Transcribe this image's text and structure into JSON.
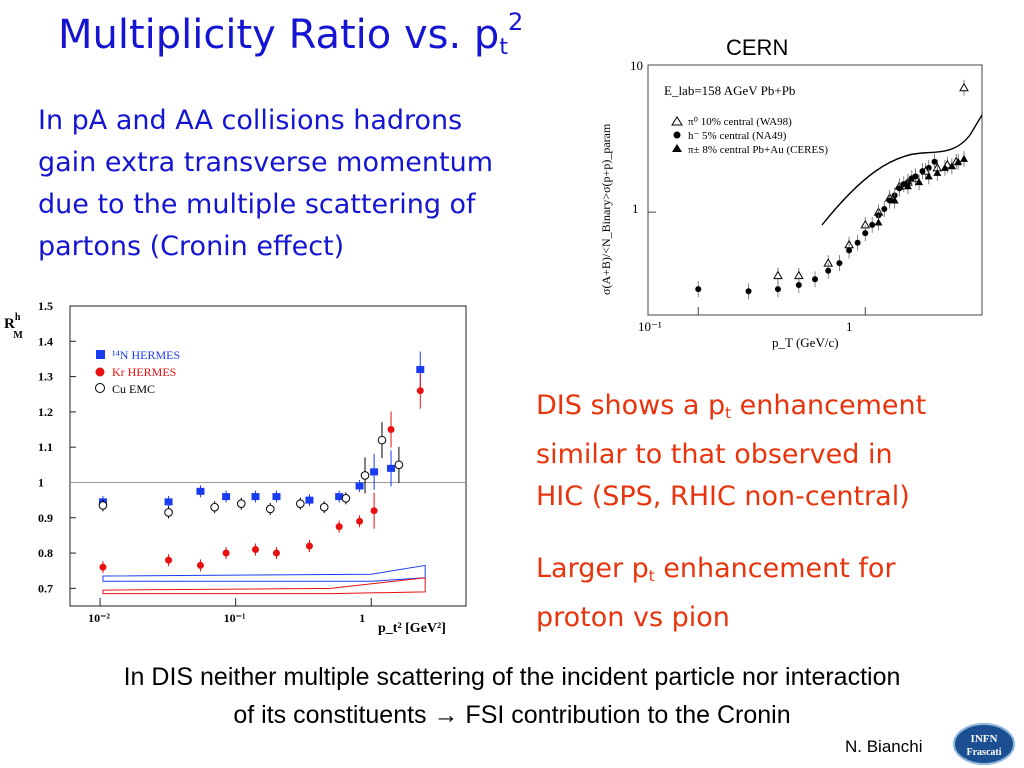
{
  "slide": {
    "title_main": "Multiplicity Ratio vs. p",
    "title_sub": "t",
    "title_sup": "2",
    "intro_lines": [
      "In pA and AA collisions hadrons",
      "gain extra transverse momentum",
      "due to the multiple scattering of",
      "partons (Cronin effect)"
    ],
    "cern_label": "CERN",
    "dis_line1_pre": "DIS shows a p",
    "dis_line1_sub": "t",
    "dis_line1_post": " enhancement",
    "dis_line2": "similar to that observed in",
    "dis_line3": "HIC (SPS, RHIC non-central)",
    "larger_line1_pre": "Larger p",
    "larger_line1_sub": "t",
    "larger_line1_post": " enhancement for",
    "larger_line2": "proton vs pion",
    "bottom_line1": "In DIS neither multiple scattering of the incident particle nor interaction",
    "bottom_line2": "of its constituents → FSI contribution to the Cronin",
    "author": "N. Bianchi",
    "logo_line1": "INFN",
    "logo_line2": "Frascati",
    "colors": {
      "title": "#1414d2",
      "highlight": "#e8340c",
      "hermes_n": "#1a3cf0",
      "hermes_kr": "#e81010"
    }
  },
  "chart_data": [
    {
      "type": "scatter",
      "xscale": "log",
      "xlim": [
        0.05,
        5
      ],
      "ylim": [
        0.2,
        10
      ],
      "yscale": "log",
      "xlabel": "p_T (GeV/c)",
      "ylabel": "σ(A+B)/<N_Binary>σ(p+p)_param",
      "x_ticks": [
        "10⁻¹",
        "1"
      ],
      "y_ticks": [
        "1",
        "10"
      ],
      "annotation": "E_lab=158 AGeV Pb+Pb",
      "legend": [
        {
          "symbol": "open-triangle",
          "label": "π⁰ 10% central (WA98)"
        },
        {
          "symbol": "filled-circle",
          "label": "h⁻ 5% central (NA49)"
        },
        {
          "symbol": "filled-triangle",
          "label": "π± 8% central Pb+Au (CERES)"
        }
      ],
      "series": [
        {
          "name": "π⁰ 10% central (WA98)",
          "marker": "open-triangle",
          "x": [
            0.3,
            0.4,
            0.6,
            0.8,
            1.0,
            1.2,
            1.4,
            1.6,
            1.8,
            2.0,
            2.3,
            2.7,
            3.1,
            3.5,
            3.9
          ],
          "y": [
            0.37,
            0.37,
            0.45,
            0.6,
            0.82,
            1.0,
            1.25,
            1.5,
            1.6,
            1.7,
            1.9,
            2.0,
            2.1,
            2.2,
            7.0
          ]
        },
        {
          "name": "h⁻ 5% central (NA49)",
          "marker": "filled-circle",
          "x": [
            0.1,
            0.2,
            0.3,
            0.4,
            0.5,
            0.6,
            0.7,
            0.8,
            0.9,
            1.0,
            1.1,
            1.2,
            1.3,
            1.4,
            1.5,
            1.6,
            1.7,
            1.8,
            1.9,
            2.0,
            2.2,
            2.4,
            2.6
          ],
          "y": [
            0.3,
            0.29,
            0.3,
            0.32,
            0.35,
            0.4,
            0.45,
            0.55,
            0.62,
            0.72,
            0.82,
            0.95,
            1.05,
            1.2,
            1.3,
            1.45,
            1.55,
            1.6,
            1.7,
            1.75,
            1.9,
            2.0,
            2.2
          ]
        },
        {
          "name": "π± 8% central Pb+Au (CERES)",
          "marker": "filled-triangle",
          "x": [
            1.2,
            1.5,
            1.8,
            2.1,
            2.4,
            2.7,
            3.0,
            3.3,
            3.6,
            3.9
          ],
          "y": [
            0.85,
            1.2,
            1.5,
            1.6,
            1.75,
            1.85,
            2.0,
            2.05,
            2.2,
            2.3
          ]
        }
      ]
    },
    {
      "type": "scatter",
      "xscale": "log",
      "xlim": [
        0.006,
        5
      ],
      "ylim": [
        0.65,
        1.5
      ],
      "xlabel": "p_t² [GeV²]",
      "ylabel": "R^h_M",
      "y_ticks": [
        "0.7",
        "0.8",
        "0.9",
        "1",
        "1.1",
        "1.2",
        "1.3",
        "1.4",
        "1.5"
      ],
      "x_ticks": [
        "10⁻²",
        "10⁻¹",
        "1"
      ],
      "legend": [
        {
          "symbol": "filled-square",
          "label": "¹⁴N  HERMES"
        },
        {
          "symbol": "filled-circle-cross",
          "label": "Kr HERMES"
        },
        {
          "symbol": "open-circle",
          "label": "Cu  EMC"
        }
      ],
      "series": [
        {
          "name": "¹⁴N  HERMES",
          "marker": "filled-square",
          "x": [
            0.0105,
            0.032,
            0.055,
            0.085,
            0.14,
            0.2,
            0.35,
            0.58,
            0.82,
            1.05,
            1.4,
            2.3
          ],
          "y": [
            0.945,
            0.945,
            0.975,
            0.96,
            0.96,
            0.96,
            0.95,
            0.96,
            0.99,
            1.03,
            1.04,
            1.32
          ]
        },
        {
          "name": "Kr HERMES",
          "marker": "filled-circle-cross",
          "x": [
            0.0105,
            0.032,
            0.055,
            0.085,
            0.14,
            0.2,
            0.35,
            0.58,
            0.82,
            1.05,
            1.4,
            2.3
          ],
          "y": [
            0.76,
            0.78,
            0.765,
            0.8,
            0.81,
            0.8,
            0.82,
            0.875,
            0.89,
            0.92,
            1.15,
            1.26
          ]
        },
        {
          "name": "Cu  EMC",
          "marker": "open-circle",
          "x": [
            0.0105,
            0.032,
            0.07,
            0.11,
            0.18,
            0.3,
            0.45,
            0.65,
            0.9,
            1.2,
            1.6
          ],
          "y": [
            0.935,
            0.915,
            0.93,
            0.94,
            0.925,
            0.94,
            0.93,
            0.955,
            1.02,
            1.12,
            1.05
          ]
        }
      ],
      "systematic_bands": [
        {
          "name": "¹⁴N systematic",
          "x": [
            0.0105,
            1.0,
            2.5
          ],
          "low": [
            0.72,
            0.72,
            0.73
          ],
          "high": [
            0.735,
            0.74,
            0.765
          ]
        },
        {
          "name": "Kr systematic",
          "x": [
            0.0105,
            0.5,
            2.5
          ],
          "low": [
            0.685,
            0.685,
            0.69
          ],
          "high": [
            0.695,
            0.7,
            0.73
          ]
        }
      ],
      "reference_line": 1.0
    }
  ]
}
